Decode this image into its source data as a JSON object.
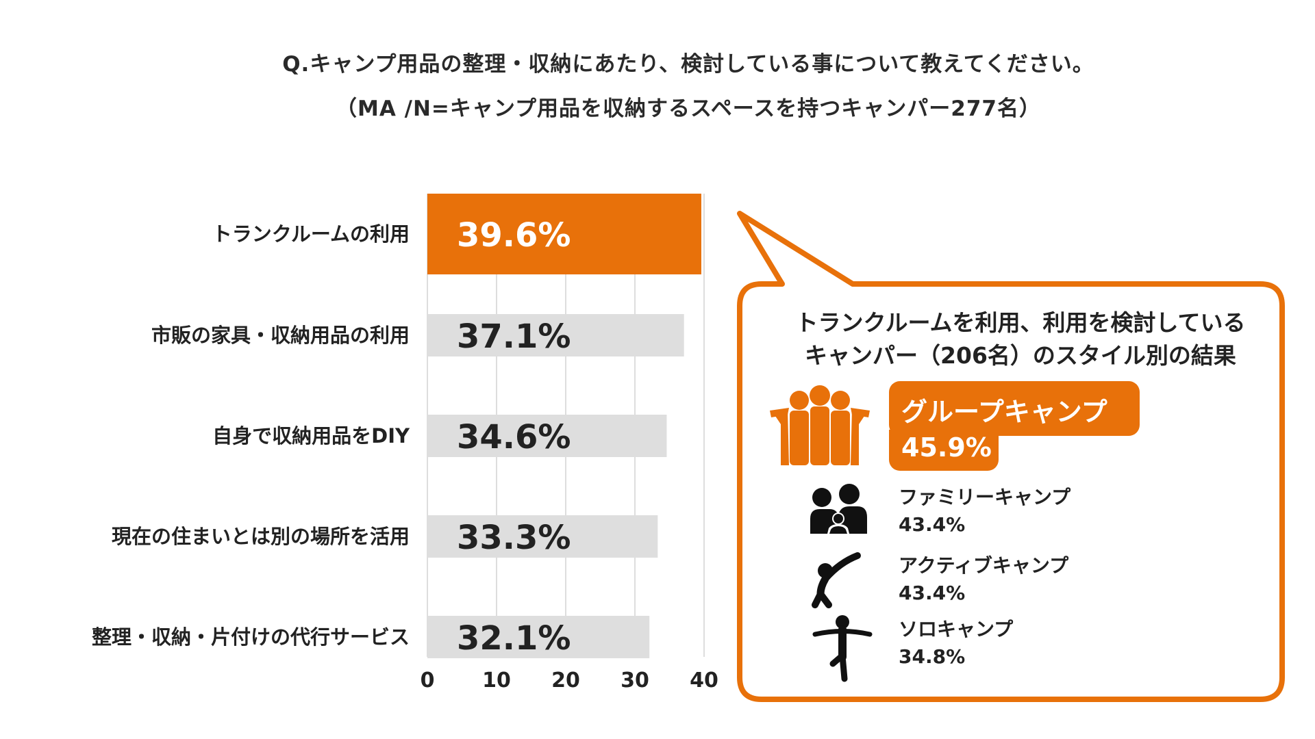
{
  "title": {
    "line1": "Q.キャンプ用品の整理・収納にあたり、検討している事について教えてください。",
    "line2": "（MA /N=キャンプ用品を収納するスペースを持つキャンパー277名）"
  },
  "colors": {
    "accent": "#e8710a",
    "bar_gray": "#dedede",
    "grid": "#dddddd",
    "text": "#222222"
  },
  "chart_data": {
    "type": "bar",
    "orientation": "horizontal",
    "categories": [
      "トランクルームの利用",
      "市販の家具・収納用品の利用",
      "自身で収納用品をDIY",
      "現在の住まいとは別の場所を活用",
      "整理・収納・片付けの代行サービス"
    ],
    "values": [
      39.6,
      37.1,
      34.6,
      33.3,
      32.1
    ],
    "value_labels": [
      "39.6%",
      "37.1%",
      "34.6%",
      "33.3%",
      "32.1%"
    ],
    "highlight_index": 0,
    "xlim": [
      0,
      40
    ],
    "xticks": [
      "0",
      "10",
      "20",
      "30",
      "40"
    ],
    "grid": true
  },
  "bubble": {
    "heading_line1": "トランクルームを利用、利用を検討している",
    "heading_line2": "キャンパー（206名）のスタイル別の結果",
    "highlight": {
      "name": "グループキャンプ",
      "pct": "45.9%",
      "icon": "group-people-icon"
    },
    "items": [
      {
        "name": "ファミリーキャンプ",
        "pct": "43.4%",
        "icon": "family-icon"
      },
      {
        "name": "アクティブキャンプ",
        "pct": "43.4%",
        "icon": "stretching-person-icon"
      },
      {
        "name": "ソロキャンプ",
        "pct": "34.8%",
        "icon": "balancing-person-icon"
      }
    ]
  }
}
